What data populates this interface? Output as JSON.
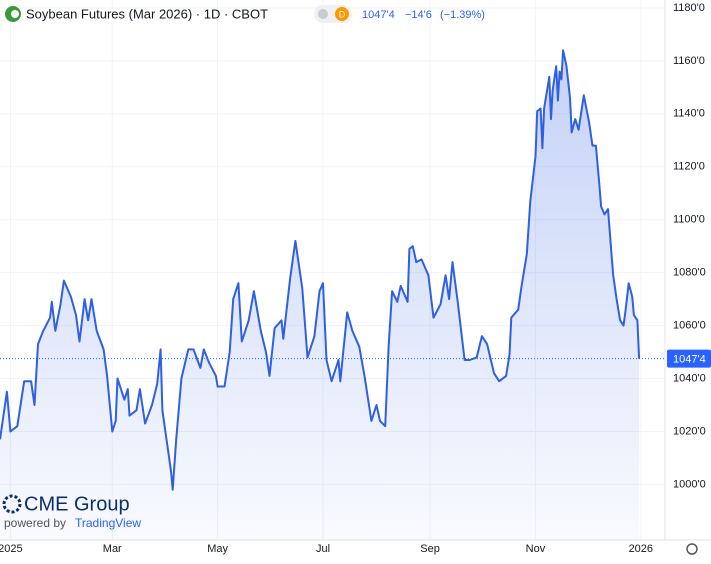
{
  "chart_data": {
    "type": "area",
    "title": "Soybean Futures (Mar 2026) · 1D · CBOT",
    "interval_badge": "D",
    "last_price": "1047'4",
    "change": "−14'6",
    "change_pct": "(−1.39%)",
    "brand": "CME Group",
    "powered_by": "powered by",
    "platform": "TradingView",
    "color": "#2f5fe3",
    "grid": true,
    "x": [
      -6,
      -2,
      0,
      4,
      8,
      12,
      14,
      16,
      19,
      23,
      24,
      26,
      29,
      31,
      35,
      38,
      40,
      43,
      45,
      47,
      50,
      54,
      56,
      59,
      61,
      62,
      66,
      68,
      69,
      73,
      75,
      78,
      82,
      85,
      87,
      88,
      93,
      94,
      96,
      99,
      103,
      106,
      110,
      112,
      115,
      119,
      120,
      124,
      127,
      129,
      132,
      134,
      138,
      141,
      145,
      148,
      150,
      153,
      157,
      158,
      162,
      165,
      169,
      172,
      176,
      179,
      181,
      183,
      186,
      190,
      191,
      195,
      198,
      202,
      205,
      209,
      212,
      214,
      217,
      219,
      221,
      224,
      226,
      230,
      231,
      233,
      235,
      238,
      242,
      245,
      249,
      252,
      254,
      256,
      259,
      263,
      266,
      270,
      273,
      276,
      280,
      283,
      287,
      289,
      290,
      294,
      296,
      299,
      301,
      304,
      305,
      307,
      308,
      309,
      312,
      313,
      314,
      316,
      317,
      318,
      319,
      320,
      322,
      324,
      325,
      327,
      329,
      332,
      335,
      337,
      339,
      341,
      342,
      344,
      346,
      348,
      349,
      351,
      353,
      355,
      356,
      358,
      360,
      361,
      363,
      364
    ],
    "values": [
      1017,
      1035,
      1020,
      1022,
      1039,
      1039,
      1030,
      1053,
      1058,
      1063,
      1069,
      1058,
      1068,
      1077,
      1071,
      1064,
      1054,
      1070,
      1062,
      1070,
      1058,
      1051,
      1041,
      1020,
      1024,
      1040,
      1032,
      1036,
      1026,
      1028,
      1036,
      1023,
      1030,
      1038,
      1051,
      1028,
      1005,
      998,
      1017,
      1040,
      1051,
      1051,
      1044,
      1051,
      1046,
      1041,
      1037,
      1037,
      1050,
      1070,
      1076,
      1054,
      1062,
      1073,
      1058,
      1050,
      1041,
      1059,
      1062,
      1055,
      1078,
      1092,
      1074,
      1048,
      1056,
      1073,
      1076,
      1047,
      1039,
      1047,
      1039,
      1065,
      1058,
      1052,
      1041,
      1024,
      1030,
      1024,
      1022,
      1052,
      1073,
      1069,
      1075,
      1069,
      1089,
      1090,
      1084,
      1085,
      1079,
      1063,
      1068,
      1079,
      1070,
      1084,
      1069,
      1047,
      1047,
      1048,
      1056,
      1053,
      1042,
      1039,
      1041,
      1049,
      1063,
      1066,
      1075,
      1087,
      1107,
      1124,
      1141,
      1142,
      1127,
      1142,
      1154,
      1138,
      1149,
      1158,
      1145,
      1156,
      1153,
      1164,
      1158,
      1146,
      1133,
      1138,
      1134,
      1147,
      1137,
      1128,
      1128,
      1113,
      1105,
      1102,
      1104,
      1087,
      1079,
      1070,
      1062,
      1060,
      1065,
      1076,
      1071,
      1064,
      1062,
      1047.5
    ],
    "xlim": [
      -6,
      379
    ],
    "xticks": [
      {
        "value": 0,
        "label": "2025"
      },
      {
        "value": 59,
        "label": "Mar"
      },
      {
        "value": 120,
        "label": "May"
      },
      {
        "value": 181,
        "label": "Jul"
      },
      {
        "value": 243,
        "label": "Sep"
      },
      {
        "value": 304,
        "label": "Nov"
      },
      {
        "value": 365,
        "label": "2026"
      }
    ],
    "ylim": [
      979,
      1183
    ],
    "yticks": [
      {
        "value": 1000,
        "label": "1000'0"
      },
      {
        "value": 1020,
        "label": "1020'0"
      },
      {
        "value": 1040,
        "label": "1040'0"
      },
      {
        "value": 1060,
        "label": "1060'0"
      },
      {
        "value": 1080,
        "label": "1080'0"
      },
      {
        "value": 1100,
        "label": "1100'0"
      },
      {
        "value": 1120,
        "label": "1120'0"
      },
      {
        "value": 1140,
        "label": "1140'0"
      },
      {
        "value": 1160,
        "label": "1160'0"
      },
      {
        "value": 1180,
        "label": "1180'0"
      }
    ]
  }
}
